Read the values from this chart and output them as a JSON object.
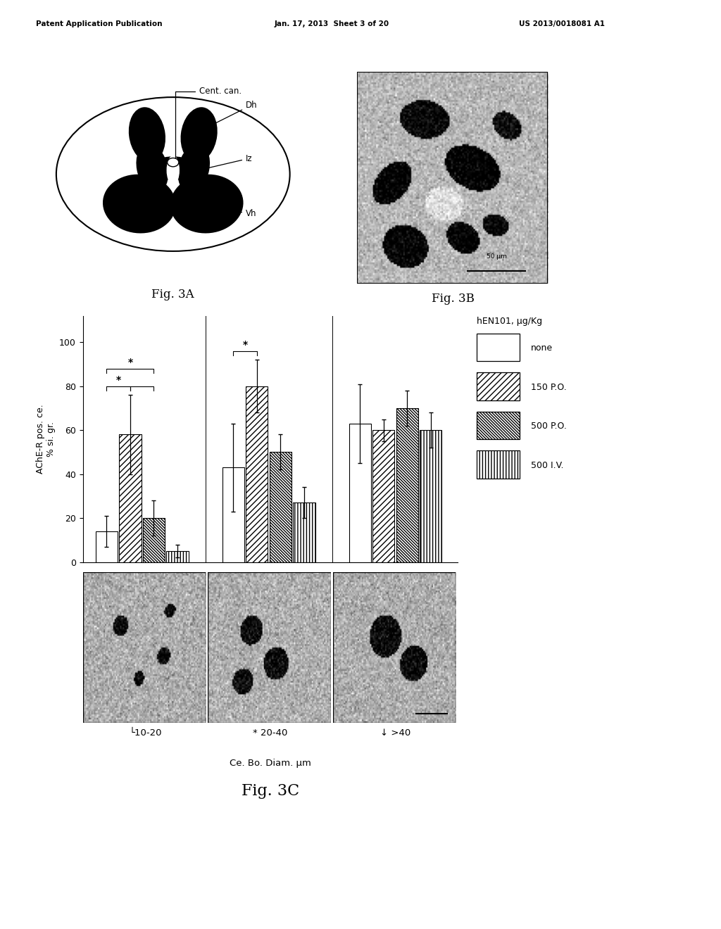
{
  "header_left": "Patent Application Publication",
  "header_mid": "Jan. 17, 2013  Sheet 3 of 20",
  "header_right": "US 2013/0018081 A1",
  "fig3A_label": "Fig. 3A",
  "fig3B_label": "Fig. 3B",
  "fig3C_label": "Fig. 3C",
  "legend_title": "hEN101, μg/Kg",
  "legend_entries": [
    "none",
    "150 P.O.",
    "500 P.O.",
    "500 I.V."
  ],
  "ylabel": "AChE-R pos. ce.\n% si. gr.",
  "xlabel": "Ce. Bo. Diam. μm",
  "bar_groups": [
    "10-20",
    "20-40",
    ">40"
  ],
  "bar_groups_labels": [
    "└10-20",
    "* 20-40",
    "↓ >40"
  ],
  "bar_values": [
    [
      14,
      58,
      20,
      5
    ],
    [
      43,
      80,
      50,
      27
    ],
    [
      63,
      60,
      70,
      60
    ]
  ],
  "bar_errors": [
    [
      7,
      18,
      8,
      3
    ],
    [
      20,
      12,
      8,
      7
    ],
    [
      18,
      5,
      8,
      8
    ]
  ],
  "yticks": [
    0,
    20,
    40,
    60,
    80,
    100
  ],
  "ylim": [
    0,
    112
  ],
  "background_color": "#ffffff",
  "hatches": [
    "",
    "////",
    "\\\\\\\\\\\\\\\\",
    "||||"
  ],
  "scale_bar_label": "50 μm"
}
